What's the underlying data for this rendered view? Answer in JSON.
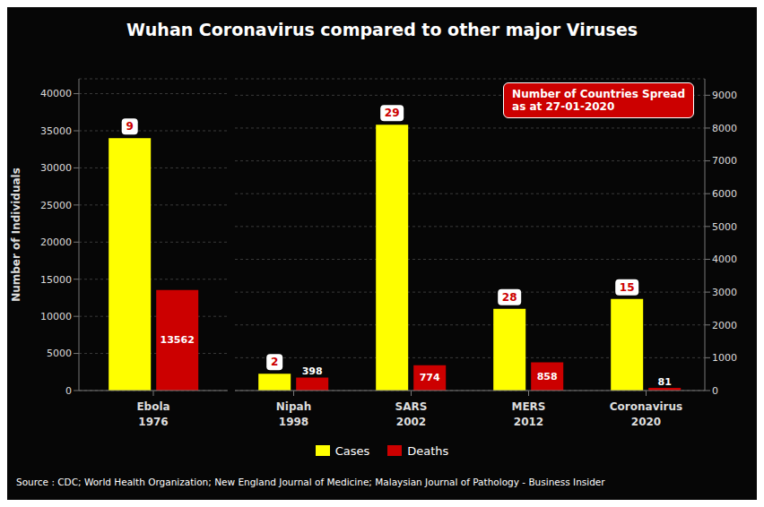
{
  "chart_data": [
    {
      "type": "bar",
      "title": "Wuhan Coronavirus compared to other major Viruses",
      "y_label": "Number of Individuals",
      "source": "Source : CDC; World Health Organization; New England Journal of Medicine; Malaysian Journal of Pathology - Business Insider",
      "categories": [
        "Ebola\n1976"
      ],
      "series": [
        {
          "name": "Cases",
          "color": "#ffff00",
          "values": [
            34000
          ],
          "countries": [
            9
          ]
        },
        {
          "name": "Deaths",
          "color": "#cc0000",
          "values": [
            13562
          ],
          "data_labels": true
        }
      ],
      "ylim": [
        0,
        42000
      ],
      "yticks": [
        0,
        5000,
        10000,
        15000,
        20000,
        25000,
        30000,
        35000,
        40000
      ],
      "grid": true,
      "legend": "bottom"
    },
    {
      "type": "bar",
      "categories": [
        "Nipah\n1998",
        "SARS\n2002",
        "MERS\n2012",
        "Coronavirus\n2020"
      ],
      "series": [
        {
          "name": "Cases",
          "color": "#ffff00",
          "values": [
            513,
            8098,
            2494,
            2794
          ],
          "countries": [
            2,
            29,
            28,
            15
          ]
        },
        {
          "name": "Deaths",
          "color": "#cc0000",
          "values": [
            398,
            774,
            858,
            81
          ],
          "data_labels": true
        }
      ],
      "ylim": [
        0,
        9500
      ],
      "yticks": [
        0,
        1000,
        2000,
        3000,
        4000,
        5000,
        6000,
        7000,
        8000,
        9000
      ],
      "grid": true,
      "annotations": [
        {
          "text": "Number of Countries Spread\nas at 27-01-2020",
          "color": "#cc0000"
        }
      ]
    }
  ]
}
